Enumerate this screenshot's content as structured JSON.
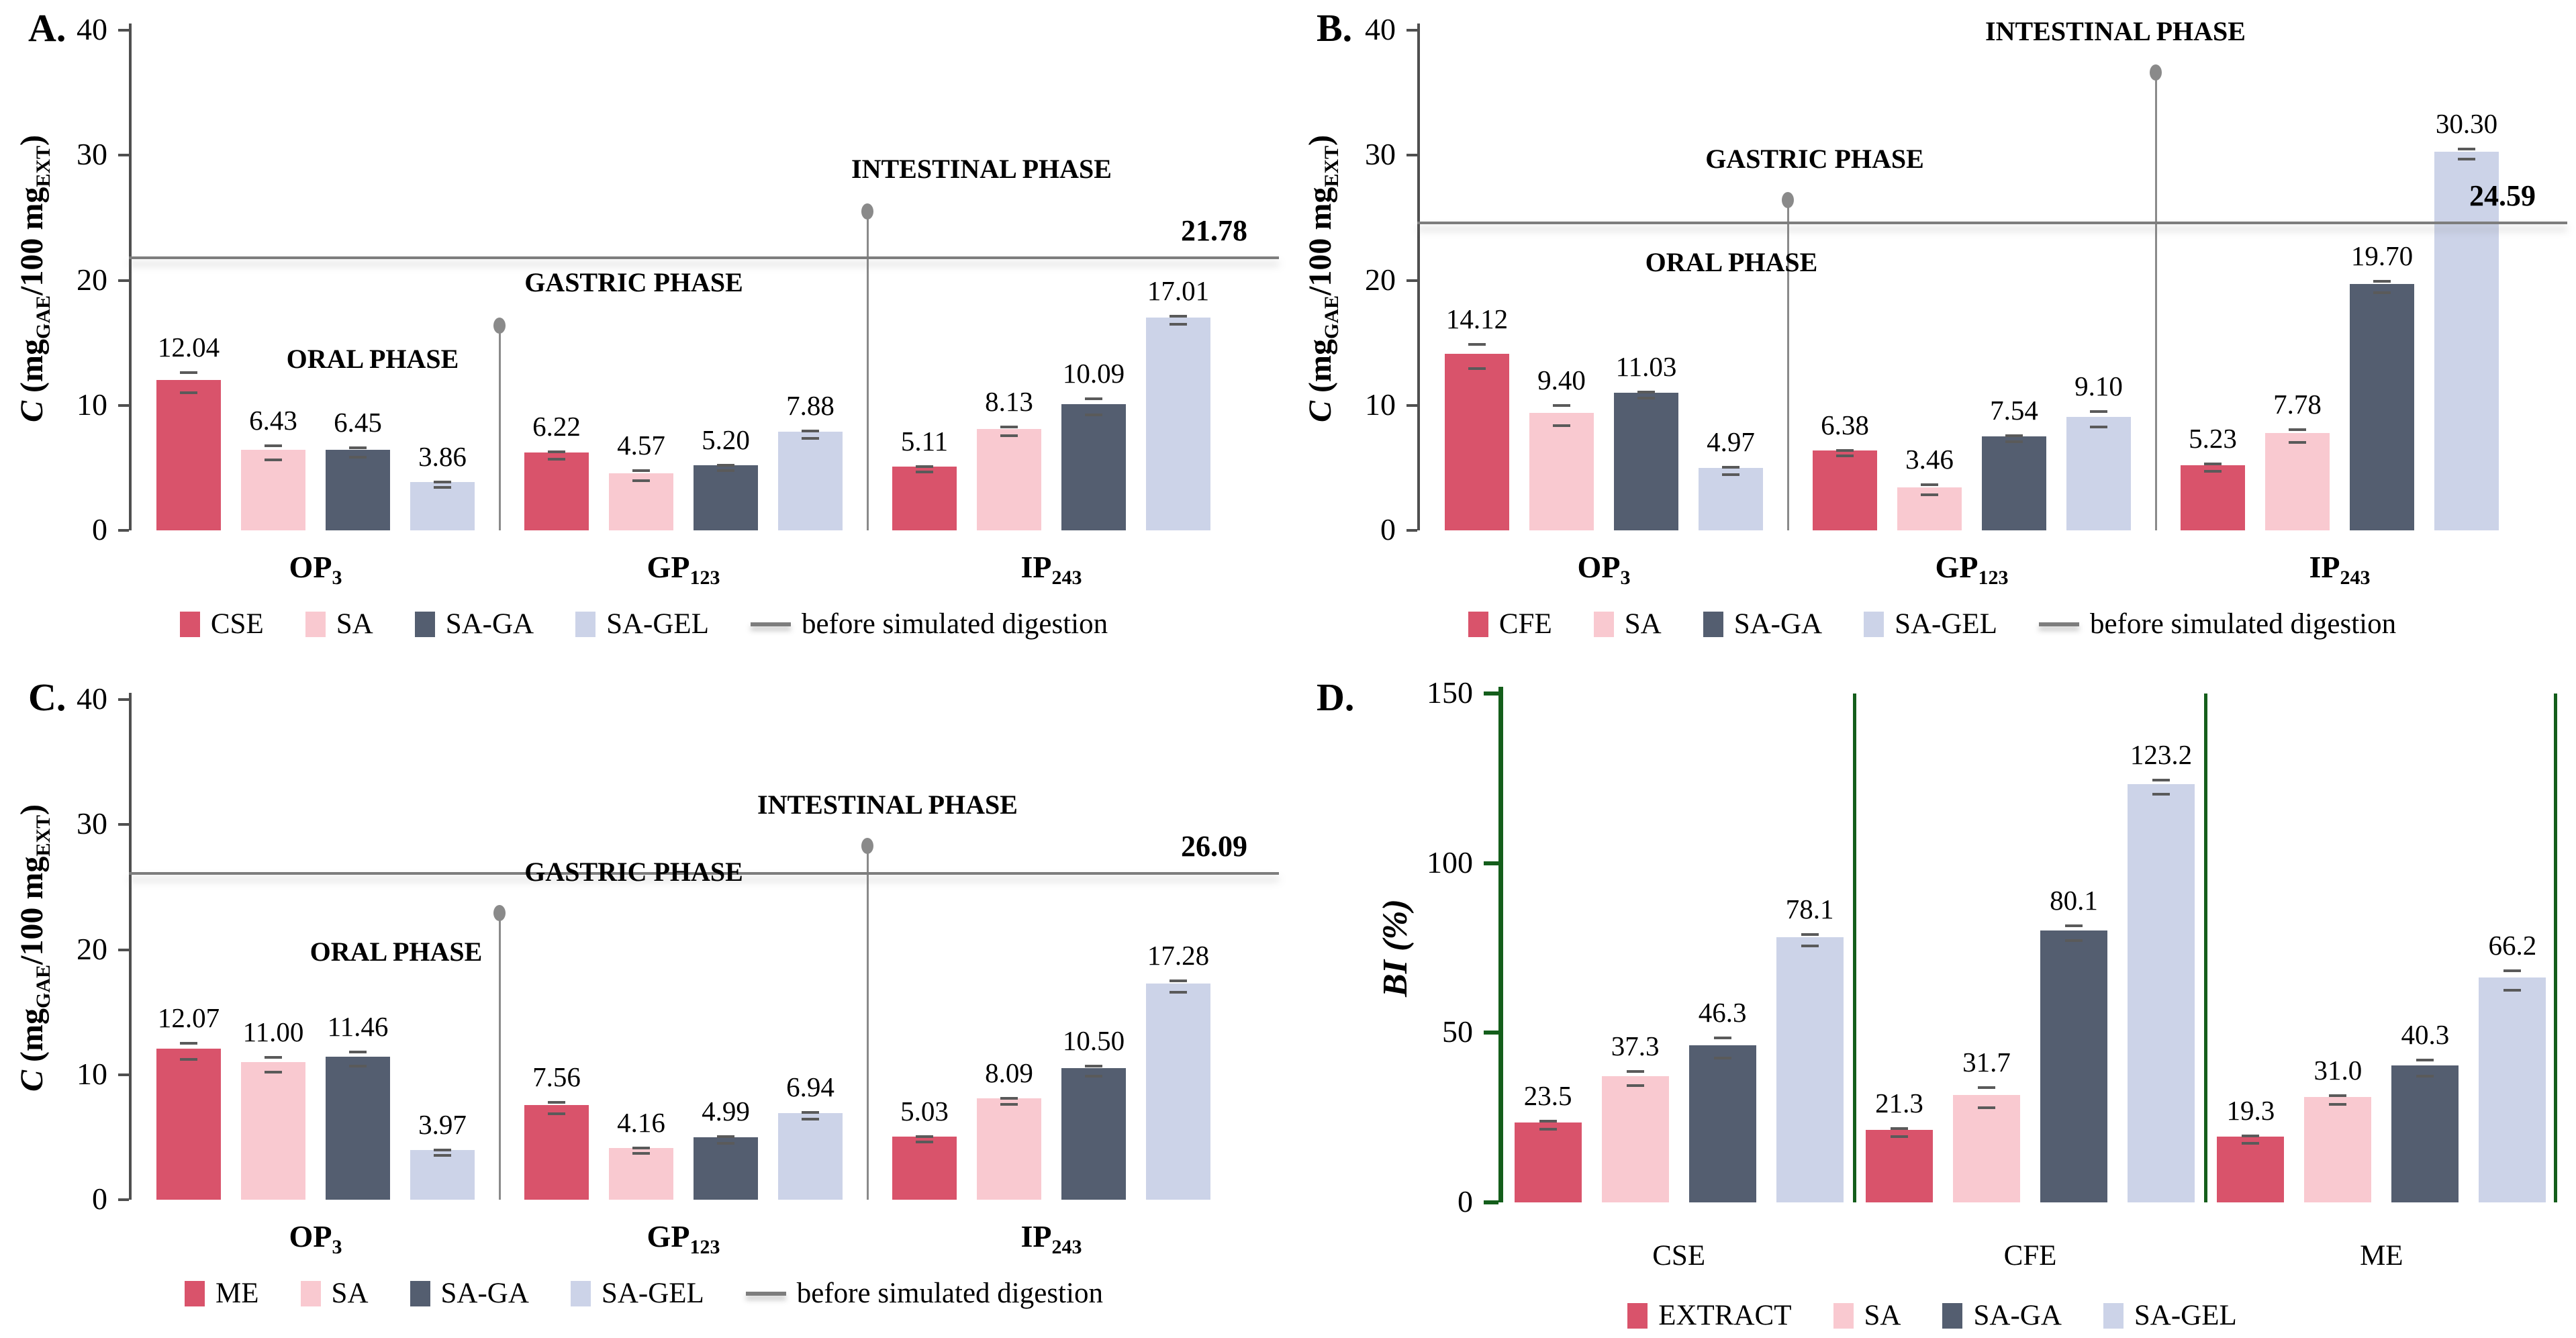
{
  "figure": {
    "panel_labels": [
      "A.",
      "B.",
      "C.",
      "D."
    ],
    "phase_label_oral": "ORAL PHASE",
    "phase_label_gastric": "GASTRIC PHASE",
    "phase_label_intestinal": "INTESTINAL PHASE",
    "colors": {
      "extract": "#d9536b",
      "sa": "#f9c9d0",
      "sa_ga": "#545e70",
      "sa_gel": "#ccd3e8",
      "reference_line": "#7d7d7d",
      "panel_d_axis_green": "#145e1b"
    }
  },
  "chart_data": [
    {
      "panel_label": "A.",
      "type": "bar",
      "ylabel": {
        "lead": "C",
        "pre": " (mg",
        "sub1": "GAE",
        "mid": "/100 mg",
        "sub2": "EXT",
        "post": ")"
      },
      "ylim": [
        0,
        40
      ],
      "yticks": [
        0,
        10,
        20,
        30,
        40
      ],
      "categories": [
        {
          "base": "OP",
          "sub": "3"
        },
        {
          "base": "GP",
          "sub": "123"
        },
        {
          "base": "IP",
          "sub": "243"
        }
      ],
      "series": [
        {
          "name": "CSE",
          "color": "#d9536b",
          "values": [
            12.04,
            6.22,
            5.11
          ],
          "labels": [
            "12.04",
            "6.22",
            "5.11"
          ],
          "errors": [
            0.7,
            0.18,
            0.12
          ]
        },
        {
          "name": "SA",
          "color": "#f9c9d0",
          "values": [
            6.43,
            4.57,
            8.13
          ],
          "labels": [
            "6.43",
            "4.57",
            "8.13"
          ],
          "errors": [
            0.45,
            0.3,
            0.22
          ]
        },
        {
          "name": "SA-GA",
          "color": "#545e70",
          "values": [
            6.45,
            5.2,
            10.09
          ],
          "labels": [
            "6.45",
            "5.20",
            "10.09"
          ],
          "errors": [
            0.25,
            0.12,
            0.55
          ]
        },
        {
          "name": "SA-GEL",
          "color": "#ccd3e8",
          "values": [
            3.86,
            7.88,
            17.01
          ],
          "labels": [
            "3.86",
            "7.88",
            "17.01"
          ],
          "errors": [
            0.1,
            0.18,
            0.22
          ]
        }
      ],
      "ref_line": {
        "value": 21.78,
        "label": "21.78"
      },
      "line_legend": "before simulated digestion",
      "annotations": {
        "oral": {
          "label": "ORAL PHASE",
          "text_y": 13.6,
          "dx": 85
        },
        "gastric": {
          "label": "GASTRIC PHASE",
          "dot_y": 16.4,
          "text_y": 18.4,
          "dx": 200
        },
        "intestinal": {
          "label": "INTESTINAL PHASE",
          "dot_y": 25.5,
          "text_y": 27.5,
          "dx": 170
        }
      }
    },
    {
      "panel_label": "B.",
      "type": "bar",
      "ylabel": {
        "lead": "C",
        "pre": " (mg",
        "sub1": "GAE",
        "mid": "/100 mg",
        "sub2": "EXT",
        "post": ")"
      },
      "ylim": [
        0,
        40
      ],
      "yticks": [
        0,
        10,
        20,
        30,
        40
      ],
      "categories": [
        {
          "base": "OP",
          "sub": "3"
        },
        {
          "base": "GP",
          "sub": "123"
        },
        {
          "base": "IP",
          "sub": "243"
        }
      ],
      "series": [
        {
          "name": "CFE",
          "color": "#d9536b",
          "values": [
            14.12,
            6.38,
            5.23
          ],
          "labels": [
            "14.12",
            "6.38",
            "5.23"
          ],
          "errors": [
            0.85,
            0.12,
            0.18
          ]
        },
        {
          "name": "SA",
          "color": "#f9c9d0",
          "values": [
            9.4,
            3.46,
            7.78
          ],
          "labels": [
            "9.40",
            "3.46",
            "7.78"
          ],
          "errors": [
            0.7,
            0.28,
            0.4
          ]
        },
        {
          "name": "SA-GA",
          "color": "#545e70",
          "values": [
            11.03,
            7.54,
            19.7
          ],
          "labels": [
            "11.03",
            "7.54",
            "19.70"
          ],
          "errors": [
            0.15,
            0.15,
            0.35
          ]
        },
        {
          "name": "SA-GEL",
          "color": "#ccd3e8",
          "values": [
            4.97,
            9.1,
            30.3
          ],
          "labels": [
            "4.97",
            "9.10",
            "30.30"
          ],
          "errors": [
            0.18,
            0.5,
            0.3
          ]
        }
      ],
      "ref_line": {
        "value": 24.59,
        "label": "24.59"
      },
      "line_legend": "before simulated digestion",
      "annotations": {
        "oral": {
          "label": "ORAL PHASE",
          "text_y": 21.3,
          "dx": 190
        },
        "gastric": {
          "label": "GASTRIC PHASE",
          "dot_y": 26.4,
          "text_y": 28.3,
          "dx": 40
        },
        "intestinal": {
          "label": "INTESTINAL PHASE",
          "dot_y": 36.6,
          "text_y": 38.5,
          "dx": -60
        }
      }
    },
    {
      "panel_label": "C.",
      "type": "bar",
      "ylabel": {
        "lead": "C",
        "pre": " (mg",
        "sub1": "GAE",
        "mid": "/100 mg",
        "sub2": "EXT",
        "post": ")"
      },
      "ylim": [
        0,
        40
      ],
      "yticks": [
        0,
        10,
        20,
        30,
        40
      ],
      "categories": [
        {
          "base": "OP",
          "sub": "3"
        },
        {
          "base": "GP",
          "sub": "123"
        },
        {
          "base": "IP",
          "sub": "243"
        }
      ],
      "series": [
        {
          "name": "ME",
          "color": "#d9536b",
          "values": [
            12.07,
            7.56,
            5.03
          ],
          "labels": [
            "12.07",
            "7.56",
            "5.03"
          ],
          "errors": [
            0.55,
            0.35,
            0.1
          ]
        },
        {
          "name": "SA",
          "color": "#f9c9d0",
          "values": [
            11.0,
            4.16,
            8.09
          ],
          "labels": [
            "11.00",
            "4.16",
            "8.09"
          ],
          "errors": [
            0.5,
            0.1,
            0.12
          ]
        },
        {
          "name": "SA-GA",
          "color": "#545e70",
          "values": [
            11.46,
            4.99,
            10.5
          ],
          "labels": [
            "11.46",
            "4.99",
            "10.50"
          ],
          "errors": [
            0.45,
            0.18,
            0.3
          ]
        },
        {
          "name": "SA-GEL",
          "color": "#ccd3e8",
          "values": [
            3.97,
            6.94,
            17.28
          ],
          "labels": [
            "3.97",
            "6.94",
            "17.28"
          ],
          "errors": [
            0.12,
            0.15,
            0.35
          ]
        }
      ],
      "ref_line": {
        "value": 26.09,
        "label": "26.09"
      },
      "line_legend": "before simulated digestion",
      "annotations": {
        "oral": {
          "label": "ORAL PHASE",
          "text_y": 19.7,
          "dx": 120
        },
        "gastric": {
          "label": "GASTRIC PHASE",
          "dot_y": 22.9,
          "text_y": 24.8,
          "dx": 200
        },
        "intestinal": {
          "label": "INTESTINAL PHASE",
          "dot_y": 28.3,
          "text_y": 30.2,
          "dx": 30
        }
      }
    },
    {
      "panel_label": "D.",
      "type": "bar",
      "ylabel_text": "BI (%)",
      "ylim": [
        0,
        150
      ],
      "yticks": [
        0,
        50,
        100,
        150
      ],
      "axis_color": "#145e1b",
      "categories": [
        {
          "base": "CSE"
        },
        {
          "base": "CFE"
        },
        {
          "base": "ME"
        }
      ],
      "series": [
        {
          "name": "EXTRACT",
          "color": "#d9536b",
          "values": [
            23.5,
            21.3,
            19.3
          ],
          "labels": [
            "23.5",
            "21.3",
            "19.3"
          ],
          "errors": [
            0.8,
            0.8,
            0.6
          ]
        },
        {
          "name": "SA",
          "color": "#f9c9d0",
          "values": [
            37.3,
            31.7,
            31.0
          ],
          "labels": [
            "37.3",
            "31.7",
            "31.0"
          ],
          "errors": [
            1.6,
            2.6,
            0.9
          ]
        },
        {
          "name": "SA-GA",
          "color": "#545e70",
          "values": [
            46.3,
            80.1,
            40.3
          ],
          "labels": [
            "46.3",
            "80.1",
            "40.3"
          ],
          "errors": [
            2.6,
            1.8,
            2.0
          ]
        },
        {
          "name": "SA-GEL",
          "color": "#ccd3e8",
          "values": [
            78.1,
            123.2,
            66.2
          ],
          "labels": [
            "78.1",
            "123.2",
            "66.2"
          ],
          "errors": [
            1.3,
            1.6,
            2.4
          ]
        }
      ]
    }
  ]
}
